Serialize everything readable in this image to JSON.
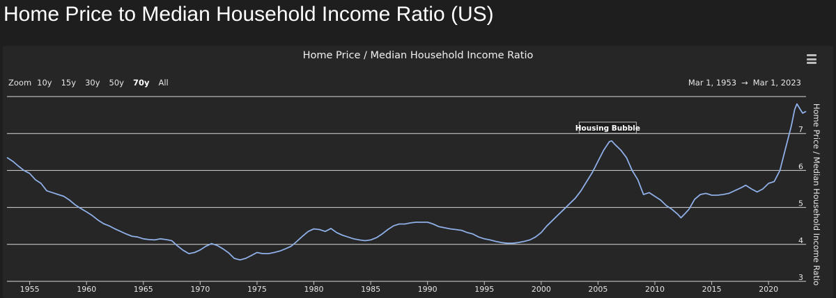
{
  "page_title": "Home Price to Median Household Income Ratio (US)",
  "chart": {
    "title": "Home Price / Median Household Income Ratio",
    "menu_icon": "hamburger-menu-icon",
    "zoom": {
      "label": "Zoom",
      "buttons": [
        "10y",
        "15y",
        "30y",
        "50y",
        "70y",
        "All"
      ],
      "active": "70y"
    },
    "range": {
      "from": "Mar 1, 1953",
      "arrow": "→",
      "to": "Mar 1, 2023"
    }
  },
  "chart_data": {
    "type": "line",
    "title": "Home Price / Median Household Income Ratio",
    "xlabel": "",
    "ylabel": "Home Price / Median Household Income Ratio",
    "x_ticks": [
      1955,
      1960,
      1965,
      1970,
      1975,
      1980,
      1985,
      1990,
      1995,
      2000,
      2005,
      2010,
      2015,
      2020
    ],
    "y_ticks": [
      3,
      4,
      5,
      6,
      7
    ],
    "xlim": [
      1953.0,
      2023.3
    ],
    "ylim": [
      3.0,
      8.0
    ],
    "grid": true,
    "line_color": "#8fb0e8",
    "annotation": {
      "x": 2006.1,
      "y": 6.8,
      "label": "Housing Bubble"
    },
    "series": [
      {
        "x": [
          1953.0,
          1953.5,
          1954.0,
          1954.5,
          1955.0,
          1955.5,
          1956.0,
          1956.5,
          1957.0,
          1957.5,
          1958.0,
          1958.5,
          1959.0,
          1959.5,
          1960.0,
          1960.5,
          1961.0,
          1961.5,
          1962.0,
          1962.5,
          1963.0,
          1963.5,
          1964.0,
          1964.5,
          1965.0,
          1965.5,
          1966.0,
          1966.5,
          1967.0,
          1967.5,
          1968.0,
          1968.5,
          1969.0,
          1969.5,
          1970.0,
          1970.5,
          1971.0,
          1971.5,
          1972.0,
          1972.5,
          1973.0,
          1973.5,
          1974.0,
          1974.5,
          1975.0,
          1975.5,
          1976.0,
          1976.5,
          1977.0,
          1977.5,
          1978.0,
          1978.5,
          1979.0,
          1979.5,
          1980.0,
          1980.5,
          1981.0,
          1981.5,
          1982.0,
          1982.5,
          1983.0,
          1983.5,
          1984.0,
          1984.5,
          1985.0,
          1985.5,
          1986.0,
          1986.5,
          1987.0,
          1987.5,
          1988.0,
          1988.5,
          1989.0,
          1989.5,
          1990.0,
          1990.5,
          1991.0,
          1991.5,
          1992.0,
          1992.5,
          1993.0,
          1993.5,
          1994.0,
          1994.5,
          1995.0,
          1995.5,
          1996.0,
          1996.5,
          1997.0,
          1997.5,
          1998.0,
          1998.5,
          1999.0,
          1999.5,
          2000.0,
          2000.5,
          2001.0,
          2001.5,
          2002.0,
          2002.5,
          2003.0,
          2003.5,
          2004.0,
          2004.5,
          2005.0,
          2005.5,
          2006.0,
          2006.2,
          2006.5,
          2007.0,
          2007.5,
          2008.0,
          2008.5,
          2009.0,
          2009.5,
          2010.0,
          2010.5,
          2011.0,
          2011.5,
          2012.0,
          2012.3,
          2012.7,
          2013.0,
          2013.5,
          2014.0,
          2014.5,
          2015.0,
          2015.5,
          2016.0,
          2016.5,
          2017.0,
          2017.5,
          2018.0,
          2018.5,
          2019.0,
          2019.5,
          2020.0,
          2020.5,
          2021.0,
          2021.5,
          2022.0,
          2022.3,
          2022.5,
          2022.8,
          2023.0,
          2023.3
        ],
        "values": [
          6.35,
          6.25,
          6.12,
          6.0,
          5.92,
          5.75,
          5.65,
          5.45,
          5.4,
          5.35,
          5.3,
          5.2,
          5.07,
          4.97,
          4.88,
          4.78,
          4.66,
          4.56,
          4.5,
          4.42,
          4.35,
          4.28,
          4.22,
          4.2,
          4.15,
          4.13,
          4.12,
          4.15,
          4.13,
          4.1,
          3.96,
          3.84,
          3.75,
          3.78,
          3.85,
          3.95,
          4.02,
          3.97,
          3.88,
          3.77,
          3.62,
          3.58,
          3.62,
          3.7,
          3.78,
          3.75,
          3.75,
          3.78,
          3.82,
          3.88,
          3.95,
          4.08,
          4.22,
          4.35,
          4.42,
          4.4,
          4.35,
          4.43,
          4.32,
          4.25,
          4.2,
          4.15,
          4.12,
          4.1,
          4.12,
          4.18,
          4.28,
          4.4,
          4.5,
          4.55,
          4.55,
          4.58,
          4.6,
          4.6,
          4.6,
          4.55,
          4.48,
          4.45,
          4.42,
          4.4,
          4.38,
          4.32,
          4.28,
          4.2,
          4.15,
          4.12,
          4.08,
          4.05,
          4.03,
          4.03,
          4.05,
          4.08,
          4.12,
          4.2,
          4.32,
          4.5,
          4.65,
          4.8,
          4.95,
          5.1,
          5.25,
          5.45,
          5.7,
          5.95,
          6.25,
          6.55,
          6.78,
          6.8,
          6.7,
          6.55,
          6.35,
          6.0,
          5.75,
          5.35,
          5.4,
          5.3,
          5.2,
          5.05,
          4.95,
          4.82,
          4.72,
          4.85,
          4.95,
          5.22,
          5.35,
          5.38,
          5.33,
          5.33,
          5.35,
          5.38,
          5.45,
          5.52,
          5.6,
          5.5,
          5.42,
          5.5,
          5.65,
          5.7,
          6.0,
          6.6,
          7.2,
          7.65,
          7.8,
          7.65,
          7.55,
          7.6
        ]
      }
    ]
  }
}
